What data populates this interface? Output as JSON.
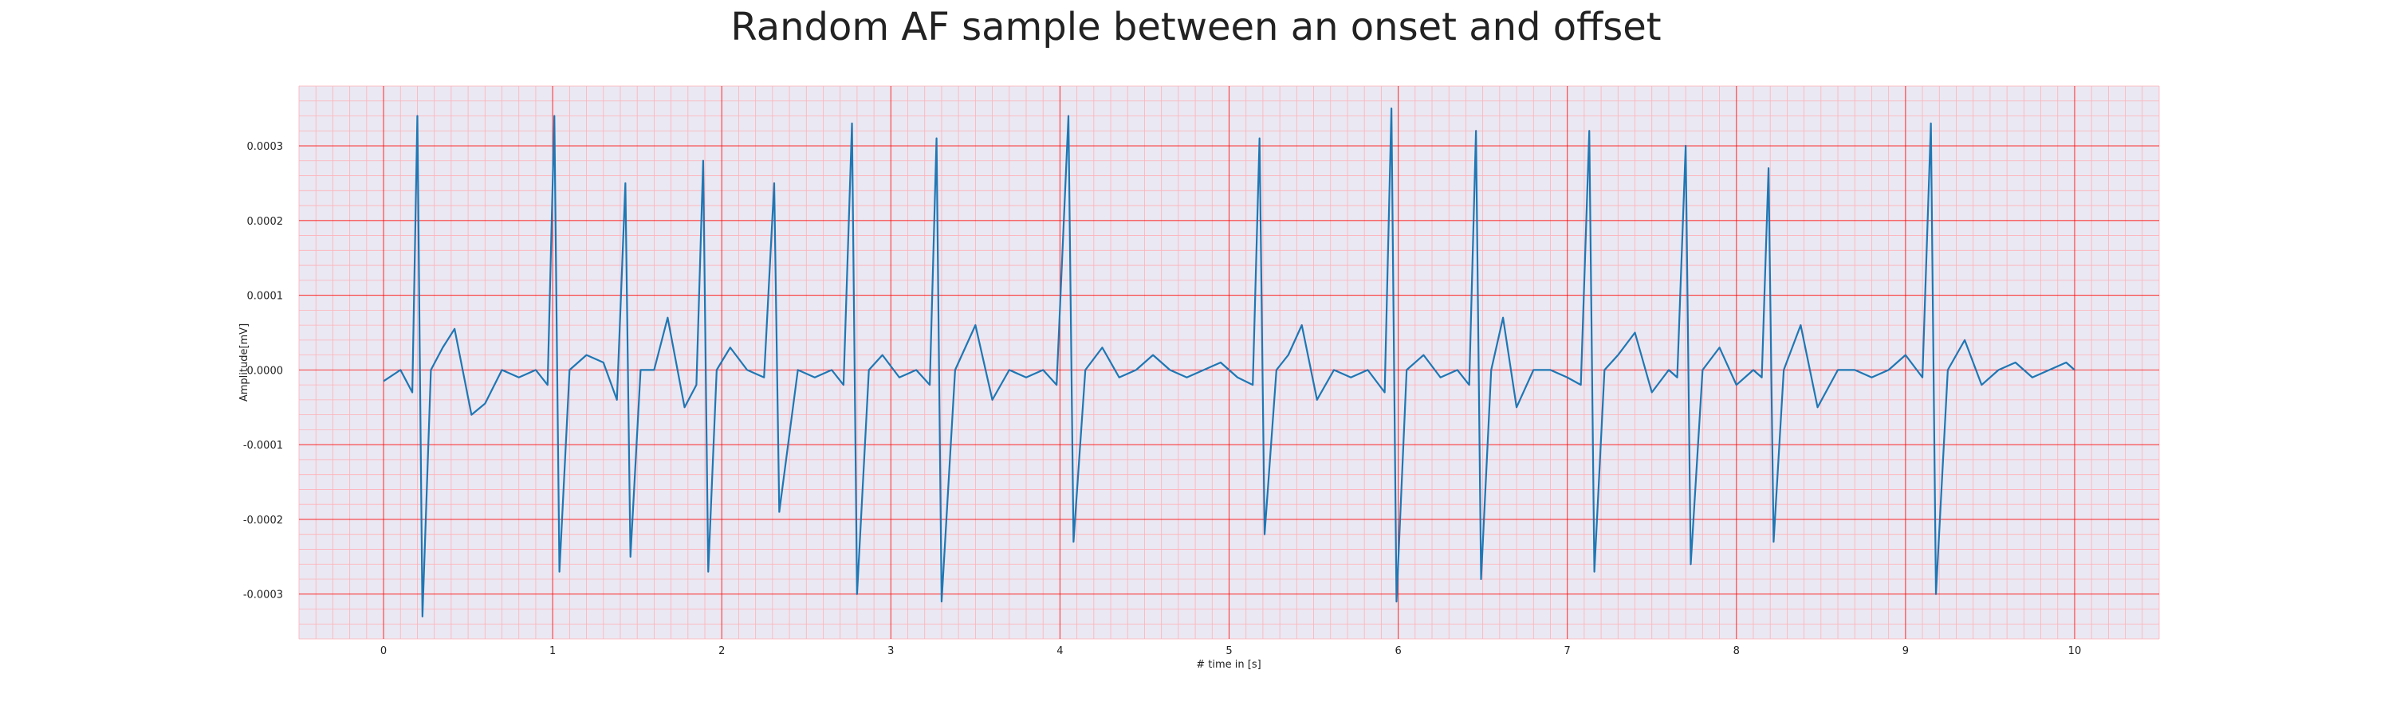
{
  "chart_data": {
    "type": "line",
    "title": "Random AF sample between an onset and offset",
    "xlabel": "# time in [s]",
    "ylabel": "Amplitude[mV]",
    "xlim": [
      -0.5,
      10.5
    ],
    "ylim": [
      -0.00036,
      0.00038
    ],
    "xticks": [
      0,
      1,
      2,
      3,
      4,
      5,
      6,
      7,
      8,
      9,
      10
    ],
    "xtick_labels": [
      "0",
      "1",
      "2",
      "3",
      "4",
      "5",
      "6",
      "7",
      "8",
      "9",
      "10"
    ],
    "yticks": [
      -0.0003,
      -0.0002,
      -0.0001,
      0.0,
      0.0001,
      0.0002,
      0.0003
    ],
    "ytick_labels": [
      "-0.0003",
      "-0.0002",
      "-0.0001",
      "0.0000",
      "0.0001",
      "0.0002",
      "0.0003"
    ],
    "grid": true,
    "colors": {
      "background": "#eae8f2",
      "major_grid": "#ff0000",
      "minor_grid": "#ffb0b8",
      "line": "#1f77b4"
    },
    "series": [
      {
        "values": [
          [
            0.0,
            -1.5e-05
          ],
          [
            0.1,
            0.0
          ],
          [
            0.17,
            -3e-05
          ],
          [
            0.2,
            0.00034
          ],
          [
            0.23,
            -0.00033
          ],
          [
            0.28,
            0.0
          ],
          [
            0.35,
            3e-05
          ],
          [
            0.42,
            5.5e-05
          ],
          [
            0.52,
            -6e-05
          ],
          [
            0.6,
            -4.5e-05
          ],
          [
            0.7,
            0.0
          ],
          [
            0.8,
            -1e-05
          ],
          [
            0.9,
            0.0
          ],
          [
            0.97,
            -2e-05
          ],
          [
            1.01,
            0.00034
          ],
          [
            1.04,
            -0.00027
          ],
          [
            1.1,
            0.0
          ],
          [
            1.2,
            2e-05
          ],
          [
            1.3,
            1e-05
          ],
          [
            1.38,
            -4e-05
          ],
          [
            1.43,
            0.00025
          ],
          [
            1.46,
            -0.00025
          ],
          [
            1.52,
            0.0
          ],
          [
            1.6,
            0.0
          ],
          [
            1.68,
            7e-05
          ],
          [
            1.78,
            -5e-05
          ],
          [
            1.85,
            -2e-05
          ],
          [
            1.89,
            0.00028
          ],
          [
            1.92,
            -0.00027
          ],
          [
            1.97,
            0.0
          ],
          [
            2.05,
            3e-05
          ],
          [
            2.15,
            0.0
          ],
          [
            2.25,
            -1e-05
          ],
          [
            2.31,
            0.00025
          ],
          [
            2.34,
            -0.00019
          ],
          [
            2.45,
            0.0
          ],
          [
            2.55,
            -1e-05
          ],
          [
            2.65,
            0.0
          ],
          [
            2.72,
            -2e-05
          ],
          [
            2.77,
            0.00033
          ],
          [
            2.8,
            -0.0003
          ],
          [
            2.87,
            0.0
          ],
          [
            2.95,
            2e-05
          ],
          [
            3.05,
            -1e-05
          ],
          [
            3.15,
            0.0
          ],
          [
            3.23,
            -2e-05
          ],
          [
            3.27,
            0.00031
          ],
          [
            3.3,
            -0.00031
          ],
          [
            3.38,
            0.0
          ],
          [
            3.5,
            6e-05
          ],
          [
            3.6,
            -4e-05
          ],
          [
            3.7,
            0.0
          ],
          [
            3.8,
            -1e-05
          ],
          [
            3.9,
            0.0
          ],
          [
            3.98,
            -2e-05
          ],
          [
            4.05,
            0.00034
          ],
          [
            4.08,
            -0.00023
          ],
          [
            4.15,
            0.0
          ],
          [
            4.25,
            3e-05
          ],
          [
            4.35,
            -1e-05
          ],
          [
            4.45,
            0.0
          ],
          [
            4.55,
            2e-05
          ],
          [
            4.65,
            0.0
          ],
          [
            4.75,
            -1e-05
          ],
          [
            4.85,
            0.0
          ],
          [
            4.95,
            1e-05
          ],
          [
            5.05,
            -1e-05
          ],
          [
            5.14,
            -2e-05
          ],
          [
            5.18,
            0.00031
          ],
          [
            5.21,
            -0.00022
          ],
          [
            5.28,
            0.0
          ],
          [
            5.35,
            2e-05
          ],
          [
            5.43,
            6e-05
          ],
          [
            5.52,
            -4e-05
          ],
          [
            5.62,
            0.0
          ],
          [
            5.72,
            -1e-05
          ],
          [
            5.82,
            0.0
          ],
          [
            5.92,
            -3e-05
          ],
          [
            5.96,
            0.00035
          ],
          [
            5.99,
            -0.00031
          ],
          [
            6.05,
            0.0
          ],
          [
            6.15,
            2e-05
          ],
          [
            6.25,
            -1e-05
          ],
          [
            6.35,
            0.0
          ],
          [
            6.42,
            -2e-05
          ],
          [
            6.46,
            0.00032
          ],
          [
            6.49,
            -0.00028
          ],
          [
            6.55,
            0.0
          ],
          [
            6.62,
            7e-05
          ],
          [
            6.7,
            -5e-05
          ],
          [
            6.8,
            0.0
          ],
          [
            6.9,
            0.0
          ],
          [
            7.0,
            -1e-05
          ],
          [
            7.08,
            -2e-05
          ],
          [
            7.13,
            0.00032
          ],
          [
            7.16,
            -0.00027
          ],
          [
            7.22,
            0.0
          ],
          [
            7.3,
            2e-05
          ],
          [
            7.4,
            5e-05
          ],
          [
            7.5,
            -3e-05
          ],
          [
            7.6,
            0.0
          ],
          [
            7.65,
            -1e-05
          ],
          [
            7.7,
            0.0003
          ],
          [
            7.73,
            -0.00026
          ],
          [
            7.8,
            0.0
          ],
          [
            7.9,
            3e-05
          ],
          [
            8.0,
            -2e-05
          ],
          [
            8.1,
            0.0
          ],
          [
            8.15,
            -1e-05
          ],
          [
            8.19,
            0.00027
          ],
          [
            8.22,
            -0.00023
          ],
          [
            8.28,
            0.0
          ],
          [
            8.38,
            6e-05
          ],
          [
            8.48,
            -5e-05
          ],
          [
            8.6,
            0.0
          ],
          [
            8.7,
            0.0
          ],
          [
            8.8,
            -1e-05
          ],
          [
            8.9,
            0.0
          ],
          [
            9.0,
            2e-05
          ],
          [
            9.1,
            -1e-05
          ],
          [
            9.15,
            0.00033
          ],
          [
            9.18,
            -0.0003
          ],
          [
            9.25,
            0.0
          ],
          [
            9.35,
            4e-05
          ],
          [
            9.45,
            -2e-05
          ],
          [
            9.55,
            0.0
          ],
          [
            9.65,
            1e-05
          ],
          [
            9.75,
            -1e-05
          ],
          [
            9.85,
            0.0
          ],
          [
            9.95,
            1e-05
          ],
          [
            10.0,
            0.0
          ]
        ]
      }
    ]
  }
}
